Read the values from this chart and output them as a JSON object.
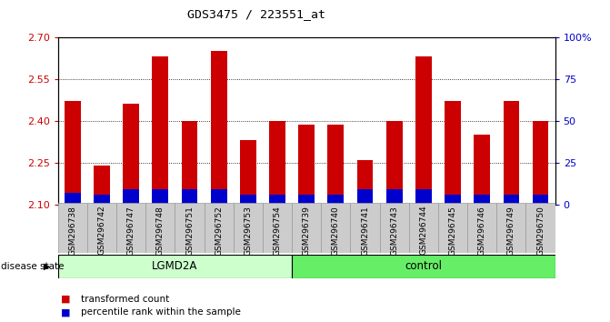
{
  "title": "GDS3475 / 223551_at",
  "samples": [
    "GSM296738",
    "GSM296742",
    "GSM296747",
    "GSM296748",
    "GSM296751",
    "GSM296752",
    "GSM296753",
    "GSM296754",
    "GSM296739",
    "GSM296740",
    "GSM296741",
    "GSM296743",
    "GSM296744",
    "GSM296745",
    "GSM296746",
    "GSM296749",
    "GSM296750"
  ],
  "red_values": [
    2.47,
    2.24,
    2.46,
    2.63,
    2.4,
    2.65,
    2.33,
    2.4,
    2.385,
    2.385,
    2.26,
    2.4,
    2.63,
    2.47,
    2.35,
    2.47,
    2.4
  ],
  "blue_pct": [
    7,
    6,
    9,
    9,
    9,
    9,
    6,
    6,
    6,
    6,
    9,
    9,
    9,
    6,
    6,
    6,
    6
  ],
  "ymin": 2.1,
  "ymax": 2.7,
  "yticks": [
    2.1,
    2.25,
    2.4,
    2.55,
    2.7
  ],
  "right_yticks": [
    0,
    25,
    50,
    75,
    100
  ],
  "right_yticklabels": [
    "0",
    "25",
    "50",
    "75",
    "100%"
  ],
  "groups": [
    {
      "label": "LGMD2A",
      "start": 0,
      "end": 8,
      "color": "#ccffcc"
    },
    {
      "label": "control",
      "start": 8,
      "end": 17,
      "color": "#66ee66"
    }
  ],
  "bar_color": "#cc0000",
  "blue_color": "#0000cc",
  "bar_width": 0.55,
  "disease_state_label": "disease state",
  "legend_items": [
    {
      "color": "#cc0000",
      "label": "transformed count"
    },
    {
      "color": "#0000cc",
      "label": "percentile rank within the sample"
    }
  ],
  "title_color": "#000000",
  "left_tick_color": "#cc0000",
  "right_tick_color": "#0000cc",
  "xtick_bg": "#cccccc"
}
